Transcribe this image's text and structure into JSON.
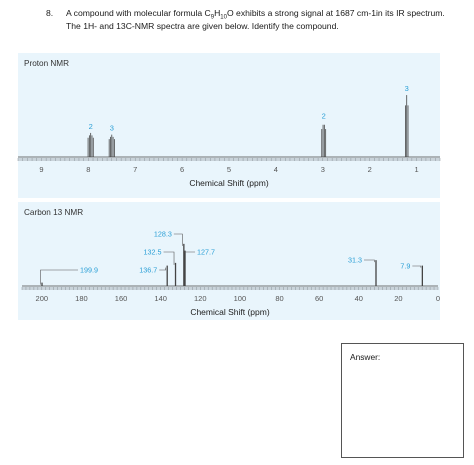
{
  "question": {
    "number": "8.",
    "line1_prefix": "A compound with molecular formula C",
    "formula_c_sub": "9",
    "formula_h": "H",
    "formula_h_sub": "10",
    "formula_o": "O",
    "line1_suffix": " exhibits a strong signal at 1687 cm-1in its IR spectrum.",
    "line2": "The 1H- and 13C-NMR spectra are given below. Identify the compound."
  },
  "answer": {
    "label": "Answer:"
  },
  "colors": {
    "panel_bg": "#e9f5fc",
    "spectrum": "#444444",
    "label_blue": "#2a9fd6"
  },
  "chart_data": [
    {
      "type": "line",
      "title": "Proton NMR",
      "xlabel": "Chemical Shift (ppm)",
      "ylabel": "",
      "xlim": [
        9.5,
        0.5
      ],
      "x_reversed": true,
      "x_ticks": [
        "9",
        "8",
        "7",
        "6",
        "5",
        "4",
        "3",
        "2",
        "1"
      ],
      "peaks": [
        {
          "ppm": 7.95,
          "height": 0.28,
          "integration": "2"
        },
        {
          "ppm": 7.5,
          "height": 0.26,
          "integration": "3"
        },
        {
          "ppm": 2.98,
          "height": 0.4,
          "integration": "2"
        },
        {
          "ppm": 1.21,
          "height": 0.72,
          "integration": "3"
        }
      ]
    },
    {
      "type": "line",
      "title": "Carbon 13 NMR",
      "xlabel": "Chemical Shift (ppm)",
      "ylabel": "",
      "xlim": [
        210,
        0
      ],
      "x_reversed": true,
      "x_ticks": [
        "200",
        "180",
        "160",
        "140",
        "120",
        "100",
        "80",
        "60",
        "40",
        "20",
        "0"
      ],
      "peaks": [
        {
          "ppm": 199.9,
          "label": "199.9",
          "height": 0.05
        },
        {
          "ppm": 136.7,
          "label": "136.7",
          "height": 0.3
        },
        {
          "ppm": 132.5,
          "label": "132.5",
          "height": 0.34
        },
        {
          "ppm": 128.3,
          "label": "128.3",
          "height": 0.62
        },
        {
          "ppm": 127.7,
          "label": "127.7",
          "height": 0.52
        },
        {
          "ppm": 31.3,
          "label": "31.3",
          "height": 0.38
        },
        {
          "ppm": 7.9,
          "label": "7.9",
          "height": 0.3
        }
      ]
    }
  ]
}
